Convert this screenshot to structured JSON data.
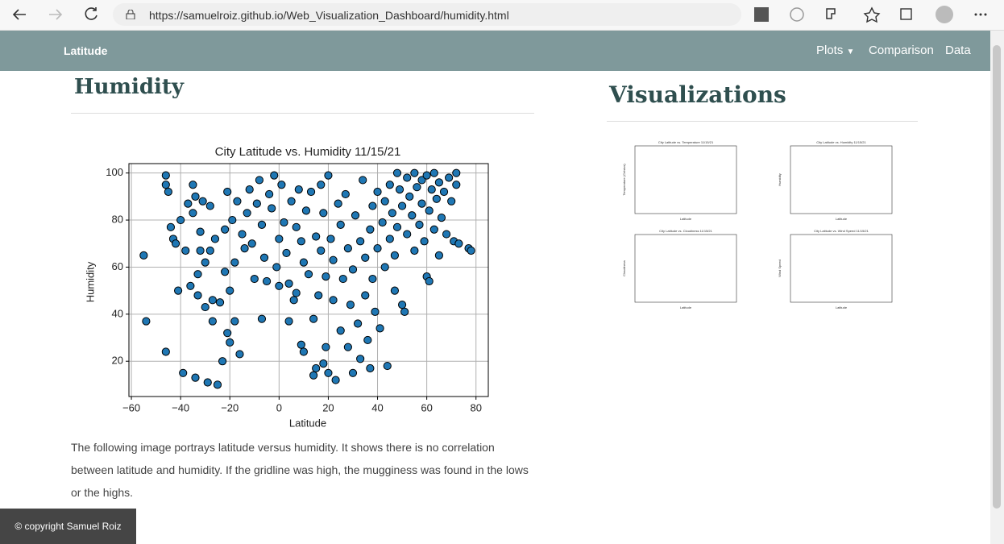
{
  "browser": {
    "url": "https://samuelroiz.github.io/Web_Visualization_Dashboard/humidity.html"
  },
  "nav": {
    "brand": "Latitude",
    "items": [
      "Plots",
      "Comparison",
      "Data"
    ]
  },
  "main": {
    "heading": "Humidity",
    "description": "The following image portrays latitude versus humidity. It shows there is no correlation between latitude and humidity. If the gridline was high, the mugginess was found in the lows or the highs."
  },
  "chart_data": {
    "type": "scatter",
    "title": "City Latitude vs. Humidity 11/15/21",
    "x_label": "Latitude",
    "y_label": "Humidity",
    "x": [
      -55,
      -54,
      -46,
      -46,
      -46,
      -45,
      -44,
      -43,
      -42,
      -41,
      -40,
      -39,
      -38,
      -37,
      -36,
      -35,
      -35,
      -34,
      -34,
      -33,
      -33,
      -32,
      -32,
      -31,
      -30,
      -30,
      -29,
      -28,
      -28,
      -27,
      -27,
      -26,
      -25,
      -24,
      -23,
      -22,
      -22,
      -21,
      -21,
      -20,
      -20,
      -19,
      -18,
      -18,
      -17,
      -16,
      -15,
      -14,
      -13,
      -12,
      -11,
      -10,
      -9,
      -8,
      -7,
      -7,
      -6,
      -5,
      -4,
      -3,
      -2,
      -1,
      0,
      0,
      1,
      2,
      3,
      4,
      4,
      5,
      6,
      7,
      7,
      8,
      9,
      9,
      10,
      10,
      11,
      12,
      13,
      14,
      14,
      15,
      15,
      16,
      17,
      17,
      18,
      18,
      19,
      19,
      20,
      20,
      21,
      22,
      22,
      23,
      24,
      25,
      25,
      26,
      27,
      28,
      28,
      29,
      30,
      30,
      31,
      32,
      33,
      33,
      34,
      35,
      35,
      36,
      37,
      37,
      38,
      38,
      39,
      40,
      40,
      41,
      42,
      43,
      43,
      44,
      45,
      45,
      46,
      47,
      47,
      48,
      48,
      49,
      50,
      50,
      51,
      52,
      52,
      53,
      54,
      55,
      55,
      56,
      57,
      58,
      58,
      59,
      60,
      60,
      61,
      61,
      62,
      63,
      63,
      64,
      65,
      65,
      66,
      67,
      68,
      69,
      70,
      71,
      72,
      72,
      73,
      77,
      78
    ],
    "values": [
      65,
      37,
      24,
      99,
      95,
      92,
      77,
      72,
      70,
      50,
      80,
      15,
      67,
      87,
      52,
      95,
      83,
      13,
      90,
      57,
      48,
      75,
      67,
      88,
      62,
      43,
      11,
      67,
      86,
      37,
      46,
      72,
      10,
      45,
      20,
      76,
      58,
      92,
      32,
      50,
      28,
      80,
      62,
      37,
      88,
      23,
      74,
      68,
      83,
      93,
      70,
      55,
      87,
      97,
      78,
      38,
      64,
      54,
      91,
      85,
      99,
      60,
      72,
      52,
      95,
      79,
      66,
      37,
      53,
      88,
      46,
      77,
      49,
      93,
      71,
      27,
      24,
      62,
      84,
      57,
      92,
      14,
      38,
      73,
      17,
      48,
      95,
      67,
      19,
      83,
      26,
      56,
      99,
      15,
      72,
      63,
      46,
      12,
      87,
      78,
      33,
      55,
      91,
      68,
      26,
      44,
      59,
      15,
      82,
      36,
      71,
      21,
      97,
      48,
      64,
      29,
      76,
      17,
      55,
      86,
      41,
      68,
      92,
      34,
      79,
      60,
      88,
      18,
      72,
      95,
      83,
      50,
      65,
      100,
      77,
      93,
      44,
      86,
      41,
      98,
      74,
      90,
      82,
      100,
      67,
      94,
      78,
      87,
      97,
      71,
      56,
      99,
      84,
      54,
      93,
      76,
      100,
      89,
      65,
      96,
      81,
      92,
      74,
      98,
      88,
      71,
      95,
      100,
      70,
      68,
      67
    ],
    "color": "#1f77b4",
    "xlim": [
      -61,
      85
    ],
    "ylim": [
      5,
      104
    ],
    "xticks": [
      {
        "value": -60,
        "label": "−60"
      },
      {
        "value": -40,
        "label": "−40"
      },
      {
        "value": -20,
        "label": "−20"
      },
      0,
      20,
      40,
      60,
      80
    ],
    "yticks": [
      20,
      40,
      60,
      80,
      100
    ],
    "grid": true
  },
  "sidebar": {
    "heading": "Visualizations",
    "thumbnails": [
      {
        "title": "City Latitude vs. Temperature 11/15/21",
        "x_label": "Latitude",
        "y_label": "Temperature (Celsius)"
      },
      {
        "title": "City Latitude vs. Humidity 11/15/21",
        "x_label": "Latitude",
        "y_label": "Humidity"
      },
      {
        "title": "City Latitude vs. Cloudiness 11/15/21",
        "x_label": "Latitude",
        "y_label": "Cloudiness"
      },
      {
        "title": "City Latitude vs. Wind Speed 11/15/21",
        "x_label": "Latitude",
        "y_label": "Wind Speed"
      }
    ]
  },
  "footer": "© copyright Samuel Roiz"
}
